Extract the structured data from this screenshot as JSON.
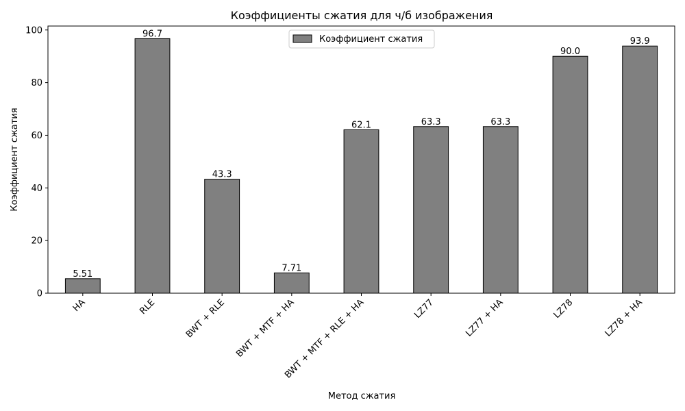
{
  "chart_data": {
    "type": "bar",
    "title": "Коэффициенты сжатия для ч/б изображения",
    "xlabel": "Метод сжатия",
    "ylabel": "Коэффициент сжатия",
    "categories": [
      "HA",
      "RLE",
      "BWT + RLE",
      "BWT + MTF + HA",
      "BWT + MTF + RLE + HA",
      "LZ77",
      "LZ77 + HA",
      "LZ78",
      "LZ78 + HA"
    ],
    "series": [
      {
        "name": "Коэффициент сжатия",
        "values": [
          5.51,
          96.7,
          43.3,
          7.71,
          62.1,
          63.3,
          63.3,
          90.0,
          93.9
        ],
        "value_labels": [
          "5.51",
          "96.7",
          "43.3",
          "7.71",
          "62.1",
          "63.3",
          "63.3",
          "90.0",
          "93.9"
        ]
      }
    ],
    "ylim": [
      0,
      101.5
    ],
    "yticks": [
      0,
      20,
      40,
      60,
      80,
      100
    ],
    "grid": false,
    "legend_position": "top-center",
    "colors": {
      "bar_fill": "#808080",
      "bar_edge": "#000000",
      "axis": "#000000",
      "background": "#ffffff"
    }
  }
}
